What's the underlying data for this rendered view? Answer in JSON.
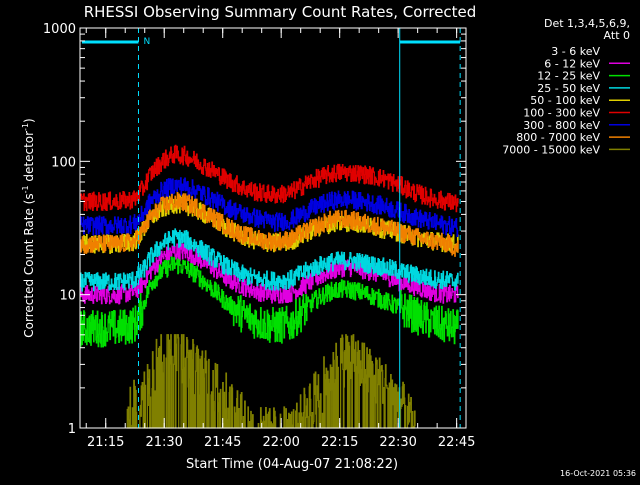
{
  "chart_data": {
    "type": "line",
    "title": "RHESSI Observing Summary Count Rates, Corrected",
    "xlabel": "Start Time (04-Aug-07 21:08:22)",
    "ylabel_main": "Corrected Count Rate (s",
    "ylabel_sup1": "-1",
    "ylabel_mid": " detector",
    "ylabel_sup2": "-1",
    "ylabel_end": ")",
    "yscale": "log",
    "ylim": [
      1,
      1000
    ],
    "xlim_minutes": [
      0,
      99
    ],
    "x_ticks": [
      {
        "label": "21:15",
        "minute": 6.6
      },
      {
        "label": "21:30",
        "minute": 21.6
      },
      {
        "label": "21:45",
        "minute": 36.6
      },
      {
        "label": "22:00",
        "minute": 51.6
      },
      {
        "label": "22:15",
        "minute": 66.6
      },
      {
        "label": "22:30",
        "minute": 81.6
      },
      {
        "label": "22:45",
        "minute": 96.6
      }
    ],
    "y_ticks": [
      {
        "label": "1",
        "value": 1
      },
      {
        "label": "10",
        "value": 10
      },
      {
        "label": "100",
        "value": 100
      },
      {
        "label": "1000",
        "value": 1000
      }
    ],
    "legend_header": [
      "Det 1,3,4,5,6,9,",
      "Att 0"
    ],
    "series": [
      {
        "name": "3 - 6 keV",
        "color": "#000000",
        "x": [
          0,
          5,
          10,
          14,
          16,
          18,
          21,
          24,
          27,
          30,
          34,
          38,
          42,
          46,
          50,
          54,
          56,
          60,
          64,
          67,
          70,
          74,
          78,
          82,
          86,
          90,
          94,
          97
        ],
        "y": [
          3.6,
          3.6,
          3.6,
          3.7,
          4,
          6,
          10,
          13,
          13.5,
          12,
          9,
          6.5,
          5,
          4,
          3.6,
          3.8,
          4.5,
          7,
          9,
          9.5,
          9,
          8,
          7,
          5.5,
          4.5,
          4,
          3.7,
          3.6
        ]
      },
      {
        "name": "6 - 12 keV",
        "color": "#e000e0",
        "x": [
          0,
          5,
          10,
          14,
          16,
          18,
          21,
          24,
          27,
          30,
          34,
          38,
          42,
          46,
          50,
          54,
          56,
          60,
          64,
          67,
          70,
          74,
          78,
          82,
          86,
          90,
          94,
          97
        ],
        "y": [
          10,
          10,
          10,
          10.5,
          12,
          15,
          19,
          21,
          21,
          19,
          16,
          13,
          11.5,
          10.5,
          10,
          10.3,
          11,
          13,
          15,
          16,
          16,
          15,
          14,
          12.5,
          11.5,
          10.5,
          10,
          10
        ]
      },
      {
        "name": "12 - 25 keV",
        "color": "#00e000",
        "x": [
          0,
          5,
          10,
          14,
          16,
          18,
          21,
          24,
          27,
          30,
          34,
          38,
          42,
          46,
          50,
          54,
          56,
          60,
          64,
          67,
          70,
          74,
          78,
          82,
          86,
          90,
          94,
          97
        ],
        "y": [
          5.6,
          5.6,
          5.6,
          6,
          8,
          12,
          15,
          17,
          16,
          14,
          11,
          8.5,
          7,
          6.2,
          5.8,
          6,
          7,
          9,
          10.5,
          11,
          10.8,
          10,
          9,
          8,
          7,
          6.2,
          5.8,
          5.6
        ]
      },
      {
        "name": "25 - 50 keV",
        "color": "#00d8e0",
        "x": [
          0,
          5,
          10,
          14,
          16,
          18,
          21,
          24,
          27,
          30,
          34,
          38,
          42,
          46,
          50,
          54,
          56,
          60,
          64,
          67,
          70,
          74,
          78,
          82,
          86,
          90,
          94,
          97
        ],
        "y": [
          12.5,
          12.5,
          12.5,
          13,
          15,
          19,
          24,
          27,
          26,
          23,
          19,
          16,
          14,
          13,
          12.7,
          13,
          14,
          16,
          17.5,
          18,
          18,
          17,
          16,
          15,
          14,
          13.2,
          12.8,
          12.5
        ]
      },
      {
        "name": "50 - 100 keV",
        "color": "#e0d000",
        "x": [
          0,
          5,
          10,
          14,
          16,
          18,
          21,
          24,
          27,
          30,
          34,
          38,
          42,
          46,
          50,
          54,
          56,
          60,
          64,
          67,
          70,
          74,
          78,
          82,
          86,
          90,
          94,
          97
        ],
        "y": [
          24,
          24,
          24,
          25,
          30,
          37,
          44,
          48,
          47,
          43,
          37,
          31,
          27,
          25,
          24.3,
          25,
          27,
          31,
          34,
          35,
          34.5,
          33,
          31,
          29,
          27,
          25.5,
          24.5,
          24
        ]
      },
      {
        "name": "100 - 300 keV",
        "color": "#e00000",
        "x": [
          0,
          5,
          10,
          14,
          16,
          18,
          21,
          24,
          27,
          30,
          34,
          38,
          42,
          46,
          50,
          54,
          56,
          60,
          64,
          67,
          70,
          74,
          78,
          82,
          86,
          90,
          94,
          97
        ],
        "y": [
          50,
          50,
          50,
          52,
          62,
          80,
          100,
          113,
          110,
          100,
          85,
          72,
          63,
          58,
          56,
          58,
          63,
          73,
          80,
          83,
          82,
          79,
          74,
          66,
          58,
          53,
          50,
          48
        ]
      },
      {
        "name": "300 - 800 keV",
        "color": "#0000e0",
        "x": [
          0,
          5,
          10,
          14,
          16,
          18,
          21,
          24,
          27,
          30,
          34,
          38,
          42,
          46,
          50,
          54,
          56,
          60,
          64,
          67,
          70,
          74,
          78,
          82,
          86,
          90,
          94,
          97
        ],
        "y": [
          33,
          33,
          33,
          34,
          40,
          50,
          60,
          66,
          65,
          60,
          52,
          45,
          40,
          37,
          35,
          36,
          39,
          45,
          50,
          52,
          51,
          49,
          46,
          42,
          38,
          35,
          33,
          32
        ]
      },
      {
        "name": "800 - 7000 keV",
        "color": "#f08000",
        "x": [
          0,
          5,
          10,
          14,
          16,
          18,
          21,
          24,
          27,
          30,
          34,
          38,
          42,
          46,
          50,
          54,
          56,
          60,
          64,
          67,
          70,
          74,
          78,
          82,
          86,
          90,
          94,
          97
        ],
        "y": [
          24,
          24,
          24,
          25,
          30,
          38,
          46,
          50,
          49,
          45,
          38,
          32,
          28,
          26,
          25,
          26,
          28,
          32,
          36,
          37,
          36,
          34,
          32,
          29.5,
          27,
          25.5,
          24.2,
          22
        ]
      },
      {
        "name": "7000 - 15000 keV",
        "color": "#808000",
        "x": [
          12,
          13,
          14,
          15,
          17,
          18,
          20,
          22,
          24,
          26,
          28,
          30,
          33,
          36,
          40,
          44,
          46,
          50,
          52,
          55,
          58,
          61,
          63,
          65,
          67,
          69,
          71,
          73,
          76,
          80,
          83,
          86
        ],
        "y": [
          1,
          1.5,
          2,
          1.5,
          2.5,
          3,
          3.5,
          4.5,
          5,
          4,
          3.5,
          3,
          2.5,
          2,
          1.5,
          1,
          1,
          1,
          1,
          1,
          1.5,
          2,
          2.5,
          3,
          3.5,
          4,
          3.5,
          3,
          2.5,
          2,
          1.5,
          1
        ]
      }
    ],
    "mark_label": "N"
  },
  "footer_timestamp": "16-Oct-2021 05:36"
}
